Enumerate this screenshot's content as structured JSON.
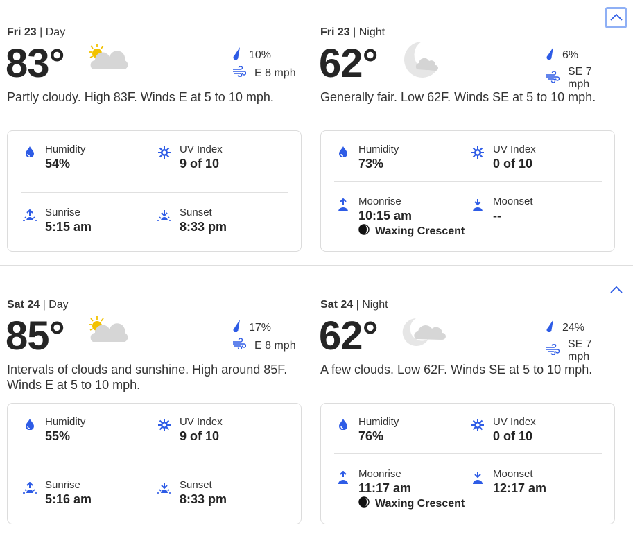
{
  "colors": {
    "accent": "#2e5ce6",
    "sun": "#f2c200",
    "cloud": "#d6d6d6",
    "moon": "#e4e4e4"
  },
  "sections": [
    {
      "collapse_icon": "chevron-up-icon",
      "focused": true,
      "panels": [
        {
          "day": "Fri 23",
          "sep": " | ",
          "period": "Day",
          "temp": "83°",
          "icon": "partly-cloudy-day-icon",
          "precip": "10%",
          "wind": "E 8 mph",
          "description": "Partly cloudy. High 83F. Winds E at 5 to 10 mph.",
          "details": {
            "humidity_label": "Humidity",
            "humidity": "54%",
            "uv_label": "UV Index",
            "uv": "9 of 10",
            "rise_label": "Sunrise",
            "rise": "5:15 am",
            "set_label": "Sunset",
            "set": "8:33 pm"
          }
        },
        {
          "day": "Fri 23",
          "sep": " | ",
          "period": "Night",
          "temp": "62°",
          "icon": "mostly-clear-night-icon",
          "precip": "6%",
          "wind": "SE 7 mph",
          "description": "Generally fair. Low 62F. Winds SE at 5 to 10 mph.",
          "details": {
            "humidity_label": "Humidity",
            "humidity": "73%",
            "uv_label": "UV Index",
            "uv": "0 of 10",
            "rise_label": "Moonrise",
            "rise": "10:15 am",
            "set_label": "Moonset",
            "set": "--",
            "moon_phase": "Waxing Crescent"
          }
        }
      ]
    },
    {
      "collapse_icon": "chevron-up-icon",
      "focused": false,
      "panels": [
        {
          "day": "Sat 24",
          "sep": " | ",
          "period": "Day",
          "temp": "85°",
          "icon": "partly-cloudy-day-icon",
          "precip": "17%",
          "wind": "E 8 mph",
          "description": "Intervals of clouds and sunshine. High around 85F. Winds E at 5 to 10 mph.",
          "details": {
            "humidity_label": "Humidity",
            "humidity": "55%",
            "uv_label": "UV Index",
            "uv": "9 of 10",
            "rise_label": "Sunrise",
            "rise": "5:16 am",
            "set_label": "Sunset",
            "set": "8:33 pm"
          }
        },
        {
          "day": "Sat 24",
          "sep": " | ",
          "period": "Night",
          "temp": "62°",
          "icon": "partly-cloudy-night-icon",
          "precip": "24%",
          "wind": "SE 7 mph",
          "description": "A few clouds. Low 62F. Winds SE at 5 to 10 mph.",
          "details": {
            "humidity_label": "Humidity",
            "humidity": "76%",
            "uv_label": "UV Index",
            "uv": "0 of 10",
            "rise_label": "Moonrise",
            "rise": "11:17 am",
            "set_label": "Moonset",
            "set": "12:17 am",
            "moon_phase": "Waxing Crescent"
          }
        }
      ]
    }
  ]
}
